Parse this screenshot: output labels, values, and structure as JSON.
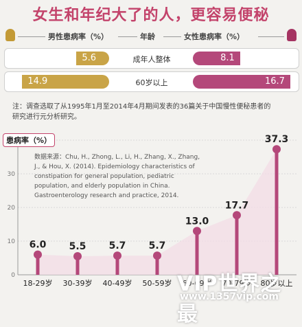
{
  "title": "女生和年纪大了的人，更容易便秘",
  "gender_table": {
    "male_header": "男性患病率（%）",
    "age_header": "年龄",
    "female_header": "女性患病率（%）",
    "male_color": "#c9a447",
    "female_color": "#b4487a",
    "rows": [
      {
        "age": "成年人整体",
        "male": 5.6,
        "female": 8.1,
        "male_label": "5.6",
        "female_label": "8.1"
      },
      {
        "age": "60岁以上",
        "male": 14.9,
        "female": 16.7,
        "male_label": "14.9",
        "female_label": "16.7"
      }
    ]
  },
  "note": "注：调查选取了从1995年1月至2014年4月期间发表的36篇关于中国慢性便秘患者的研究进行元分析研究。",
  "source": "数据来源：Chu, H., Zhong, L., Li, H., Zhang, X., Zhang, J., & Hou, X. (2014). Epidemiology characteristics of constipation for general population, pediatric population, and elderly population in China. Gastroenterology research and practice, 2014.",
  "chart_data": {
    "type": "bar",
    "ylabel": "患病率（%）",
    "categories": [
      "18-29岁",
      "30-39岁",
      "40-49岁",
      "50-59岁",
      "60-69岁",
      "70-79岁",
      "80岁以上"
    ],
    "values": [
      6.0,
      5.5,
      5.7,
      5.7,
      13.0,
      17.7,
      37.3
    ],
    "value_labels": [
      "6.0",
      "5.5",
      "5.7",
      "5.7",
      "13.0",
      "17.7",
      "37.3"
    ],
    "yticks": [
      "0",
      "10",
      "20",
      "30",
      "40"
    ],
    "ylim": [
      0,
      40
    ],
    "grid": true,
    "bar_color": "#b4487a",
    "area_color": "#f3dde6"
  },
  "watermark": {
    "main": "VIP世界之最",
    "url": "www.1357vip.com"
  }
}
